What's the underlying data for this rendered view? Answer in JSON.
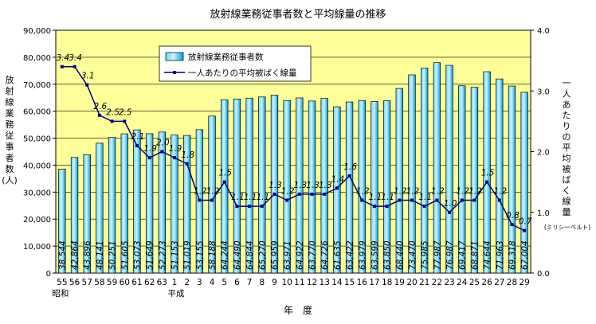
{
  "chart_data": {
    "type": "bar",
    "title": "放射線業務従事者数と平均線量の推移",
    "xlabel": "年　度",
    "ylabel_left": [
      "放",
      "射",
      "線",
      "業",
      "務",
      "従",
      "事",
      "者",
      "数",
      "(人)"
    ],
    "ylabel_right": [
      "一",
      "人",
      "あ",
      "た",
      "り",
      "の",
      "平",
      "均",
      "被",
      "ば",
      "く",
      "線",
      "量"
    ],
    "ylabel_right_unit": "(ミリシーベルト)",
    "ylim_left": [
      0,
      90000
    ],
    "ylim_right": [
      0,
      4.0
    ],
    "yticks_left": [
      "0",
      "10,000",
      "20,000",
      "30,000",
      "40,000",
      "50,000",
      "60,000",
      "70,000",
      "80,000",
      "90,000"
    ],
    "yticks_right": [
      "0.0",
      "1.0",
      "2.0",
      "3.0",
      "4.0"
    ],
    "categories": [
      "55",
      "56",
      "57",
      "58",
      "59",
      "60",
      "61",
      "62",
      "63",
      "1",
      "2",
      "3",
      "4",
      "5",
      "6",
      "7",
      "8",
      "9",
      "10",
      "11",
      "12",
      "13",
      "14",
      "15",
      "16",
      "17",
      "18",
      "19",
      "20",
      "21",
      "22",
      "23",
      "24",
      "25",
      "26",
      "27",
      "28",
      "29"
    ],
    "era_labels": [
      {
        "label": "昭和",
        "index": 0
      },
      {
        "label": "平成",
        "index": 9
      }
    ],
    "series": [
      {
        "name": "放射線業務従事者数",
        "type": "bar",
        "axis": "left",
        "values": [
          38544,
          42864,
          43896,
          48141,
          50251,
          51605,
          53073,
          51649,
          52273,
          51153,
          51019,
          53155,
          58188,
          64244,
          64490,
          64844,
          65270,
          65959,
          63971,
          64922,
          63770,
          64726,
          61635,
          63422,
          63979,
          63599,
          63850,
          68440,
          73470,
          75985,
          77987,
          76987,
          69417,
          68871,
          74644,
          71963,
          69318,
          67004
        ],
        "value_labels": [
          "38,544",
          "42,864",
          "43,896",
          "48,141",
          "50,251",
          "51,605",
          "53,073",
          "51,649",
          "52,273",
          "51,153",
          "51,019",
          "53,155",
          "58,188",
          "64,244",
          "64,490",
          "64,844",
          "65,270",
          "65,959",
          "63,971",
          "64,922",
          "63,770",
          "64,726",
          "61,635",
          "63,422",
          "63,979",
          "63,599",
          "63,850",
          "68,440",
          "73,470",
          "75,985",
          "77,987",
          "76,987",
          "69,417",
          "68,871",
          "74,644",
          "71,963",
          "69,318",
          "67,004"
        ]
      },
      {
        "name": "一人あたりの平均被ばく線量",
        "type": "line",
        "axis": "right",
        "values": [
          3.4,
          3.4,
          3.1,
          2.6,
          2.5,
          2.5,
          2.1,
          1.9,
          2.0,
          1.9,
          1.8,
          1.2,
          1.2,
          1.5,
          1.1,
          1.1,
          1.1,
          1.3,
          1.2,
          1.3,
          1.3,
          1.3,
          1.4,
          1.6,
          1.2,
          1.1,
          1.1,
          1.2,
          1.2,
          1.1,
          1.2,
          1.0,
          1.2,
          1.2,
          1.5,
          1.2,
          0.8,
          0.7
        ],
        "value_labels": [
          "3.4",
          "3.4",
          "3.1",
          "2.6",
          "2.5",
          "2.5",
          "2.1",
          "1.9",
          "2.0",
          "1.9",
          "1.8",
          "1.2",
          "1.2",
          "1.5",
          "1.1",
          "1.1",
          "1.1",
          "1.3",
          "1.2",
          "1.3",
          "1.3",
          "1.3",
          "1.4",
          "1.6",
          "1.2",
          "1.1",
          "1.1",
          "1.2",
          "1.2",
          "1.1",
          "1.2",
          "1.0",
          "1.2",
          "1.2",
          "1.5",
          "1.2",
          "0.8",
          "0.7"
        ]
      }
    ],
    "legend_placement": "top-left",
    "grid": true,
    "colors": {
      "plot_background": "#ffff99",
      "bar_fill": "#00b0f0",
      "bar_highlight": "#ccefff",
      "line": "#000080",
      "grid": "#000000"
    }
  }
}
